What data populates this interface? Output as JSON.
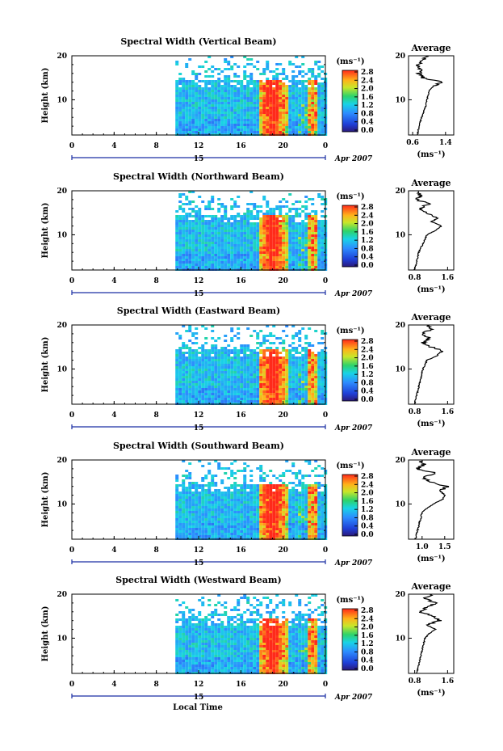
{
  "figure": {
    "xlabel": "Local Time",
    "date_label": "Apr 2007",
    "day_label": "15",
    "ylabel": "Height (km)",
    "colorbar_unit": "(ms⁻¹)",
    "avg_title": "Average",
    "avg_unit": "(ms⁻¹)"
  },
  "chart_data": [
    {
      "type": "heatmap",
      "title": "Spectral Width (Vertical Beam)",
      "x_ticks": [
        "0",
        "4",
        "8",
        "12",
        "16",
        "20",
        "0"
      ],
      "xlim": [
        0,
        24
      ],
      "ylim": [
        2,
        20
      ],
      "y_ticks": [
        "20",
        "10"
      ],
      "colorbar_ticks": [
        "2.8",
        "2.4",
        "2.0",
        "1.6",
        "1.2",
        "0.8",
        "0.4",
        "0.0"
      ],
      "data_start_hour": 9.8,
      "avg_xticks": [
        "0.6",
        "1.4"
      ],
      "avg_xlim": [
        0.5,
        1.6
      ],
      "avg_profile": {
        "heights": [
          2,
          4,
          6,
          8,
          10,
          12,
          13,
          14,
          15,
          16,
          17,
          18,
          19,
          20
        ],
        "values": [
          0.72,
          0.75,
          0.82,
          0.9,
          0.95,
          1.0,
          1.1,
          1.3,
          0.85,
          0.75,
          0.8,
          0.72,
          0.85,
          0.95
        ]
      }
    },
    {
      "type": "heatmap",
      "title": "Spectral Width (Northward Beam)",
      "x_ticks": [
        "0",
        "4",
        "8",
        "12",
        "16",
        "20",
        "0"
      ],
      "xlim": [
        0,
        24
      ],
      "ylim": [
        2,
        20
      ],
      "y_ticks": [
        "20",
        "10"
      ],
      "colorbar_ticks": [
        "2.8",
        "2.4",
        "2.0",
        "1.6",
        "1.2",
        "0.8",
        "0.4",
        "0.0"
      ],
      "data_start_hour": 9.8,
      "avg_xticks": [
        "0.8",
        "1.6"
      ],
      "avg_xlim": [
        0.65,
        1.75
      ],
      "avg_profile": {
        "heights": [
          2,
          4,
          6,
          8,
          10,
          11,
          12,
          13,
          14,
          15,
          16,
          17,
          18,
          19,
          20
        ],
        "values": [
          0.8,
          0.85,
          0.9,
          1.0,
          1.1,
          1.3,
          1.45,
          1.2,
          1.35,
          1.05,
          0.9,
          1.15,
          0.85,
          0.95,
          0.85
        ]
      }
    },
    {
      "type": "heatmap",
      "title": "Spectral Width (Eastward Beam)",
      "x_ticks": [
        "0",
        "4",
        "8",
        "12",
        "16",
        "20",
        "0"
      ],
      "xlim": [
        0,
        24
      ],
      "ylim": [
        2,
        20
      ],
      "y_ticks": [
        "20",
        "10"
      ],
      "colorbar_ticks": [
        "2.8",
        "2.4",
        "2.0",
        "1.6",
        "1.2",
        "0.8",
        "0.4",
        "0.0"
      ],
      "data_start_hour": 9.8,
      "avg_xticks": [
        "0.8",
        "1.6"
      ],
      "avg_xlim": [
        0.65,
        1.75
      ],
      "avg_profile": {
        "heights": [
          2,
          4,
          6,
          8,
          10,
          12,
          13,
          14,
          15,
          16,
          17,
          18,
          19,
          20
        ],
        "values": [
          0.8,
          0.85,
          0.9,
          0.95,
          1.0,
          1.1,
          1.35,
          1.5,
          1.2,
          1.0,
          1.15,
          0.95,
          1.25,
          1.1
        ]
      }
    },
    {
      "type": "heatmap",
      "title": "Spectral Width (Southward Beam)",
      "x_ticks": [
        "0",
        "4",
        "8",
        "12",
        "16",
        "20",
        "0"
      ],
      "xlim": [
        0,
        24
      ],
      "ylim": [
        2,
        20
      ],
      "y_ticks": [
        "20",
        "10"
      ],
      "colorbar_ticks": [
        "2.8",
        "2.4",
        "2.0",
        "1.6",
        "1.2",
        "0.8",
        "0.4",
        "0.0"
      ],
      "data_start_hour": 9.8,
      "avg_xticks": [
        "1.0",
        "1.5"
      ],
      "avg_xlim": [
        0.7,
        1.7
      ],
      "avg_profile": {
        "heights": [
          2,
          4,
          6,
          8,
          9,
          10,
          11,
          12,
          13,
          14,
          15,
          16,
          17,
          18,
          19,
          20
        ],
        "values": [
          0.85,
          0.9,
          0.95,
          1.0,
          1.1,
          1.25,
          1.45,
          1.5,
          1.4,
          1.55,
          1.2,
          1.0,
          1.3,
          0.9,
          1.05,
          0.95
        ]
      }
    },
    {
      "type": "heatmap",
      "title": "Spectral Width (Westward Beam)",
      "x_ticks": [
        "0",
        "4",
        "8",
        "12",
        "16",
        "20",
        "0"
      ],
      "xlim": [
        0,
        24
      ],
      "ylim": [
        2,
        20
      ],
      "y_ticks": [
        "20",
        "10"
      ],
      "colorbar_ticks": [
        "2.8",
        "2.4",
        "2.0",
        "1.6",
        "1.2",
        "0.8",
        "0.4",
        "0.0"
      ],
      "data_start_hour": 9.8,
      "avg_xticks": [
        "0.8",
        "1.6"
      ],
      "avg_xlim": [
        0.65,
        1.75
      ],
      "avg_profile": {
        "heights": [
          2,
          4,
          6,
          8,
          10,
          11,
          12,
          13,
          14,
          15,
          16,
          17,
          18,
          19,
          20
        ],
        "values": [
          0.85,
          0.9,
          0.95,
          1.0,
          1.05,
          1.15,
          1.3,
          1.1,
          1.4,
          1.25,
          0.9,
          1.1,
          1.3,
          1.05,
          1.2
        ]
      }
    }
  ]
}
